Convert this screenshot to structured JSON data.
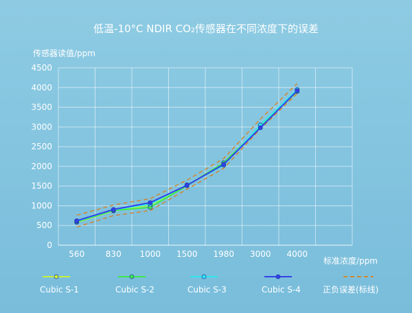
{
  "chart_data": {
    "type": "line",
    "title": "低温-10°C NDIR CO₂传感器在不同浓度下的误差",
    "ylabel": "传感器读值/ppm",
    "xlabel": "标准浓度/ppm",
    "categories": [
      "560",
      "830",
      "1000",
      "1500",
      "1980",
      "3000",
      "4000"
    ],
    "ylim": [
      0,
      4500
    ],
    "yticks": [
      0,
      500,
      1000,
      1500,
      2000,
      2500,
      3000,
      3500,
      4000,
      4500
    ],
    "grid": true,
    "legend_position": "bottom",
    "series": [
      {
        "name": "Cubic S-1",
        "color": "#c8ef3a",
        "marker": "circle",
        "values": [
          580,
          870,
          1020,
          1520,
          2080,
          3020,
          3930
        ]
      },
      {
        "name": "Cubic S-2",
        "color": "#3fe84a",
        "marker": "circle",
        "values": [
          590,
          880,
          960,
          1510,
          2090,
          3010,
          3900
        ]
      },
      {
        "name": "Cubic S-3",
        "color": "#2fe8ee",
        "marker": "circle",
        "values": [
          610,
          900,
          1040,
          1530,
          2030,
          3050,
          3950
        ]
      },
      {
        "name": "Cubic S-4",
        "color": "#3341e6",
        "marker": "circle",
        "values": [
          620,
          905,
          1080,
          1520,
          2050,
          2980,
          3920
        ]
      },
      {
        "name": "正负误差(标线)",
        "color": "#d2862e",
        "dashed": true,
        "upper": [
          760,
          1020,
          1180,
          1650,
          2200,
          3200,
          4100
        ],
        "lower": [
          460,
          750,
          880,
          1420,
          1950,
          2950,
          3850
        ]
      }
    ]
  }
}
